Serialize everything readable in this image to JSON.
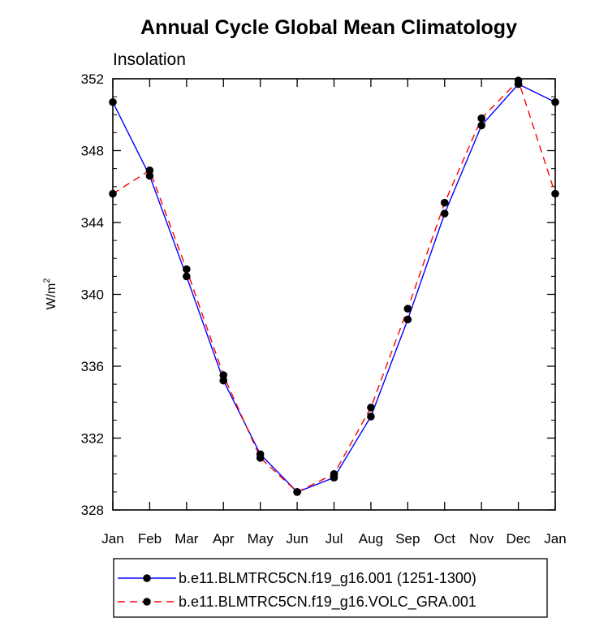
{
  "chart_data": {
    "type": "line",
    "title": "Annual Cycle Global Mean Climatology",
    "subtitle": "Insolation",
    "ylabel_base": "W/m",
    "ylabel_sup": "2",
    "xlabel": "",
    "categories": [
      "Jan",
      "Feb",
      "Mar",
      "Apr",
      "May",
      "Jun",
      "Jul",
      "Aug",
      "Sep",
      "Oct",
      "Nov",
      "Dec",
      "Jan"
    ],
    "ylim": [
      328,
      352
    ],
    "yticks": [
      328,
      332,
      336,
      340,
      344,
      348,
      352
    ],
    "series": [
      {
        "name": "b.e11.BLMTRC5CN.f19_g16.001 (1251-1300)",
        "color": "#0000ff",
        "style": "solid",
        "values": [
          350.7,
          346.6,
          341.0,
          335.2,
          331.1,
          329.0,
          329.8,
          333.2,
          338.6,
          344.5,
          349.4,
          351.7,
          350.7
        ]
      },
      {
        "name": "b.e11.BLMTRC5CN.f19_g16.VOLC_GRA.001",
        "color": "#ff0000",
        "style": "dashed",
        "values": [
          345.6,
          346.9,
          341.4,
          335.5,
          330.9,
          329.0,
          330.0,
          333.7,
          339.2,
          345.1,
          349.8,
          351.9,
          345.6
        ]
      }
    ]
  }
}
